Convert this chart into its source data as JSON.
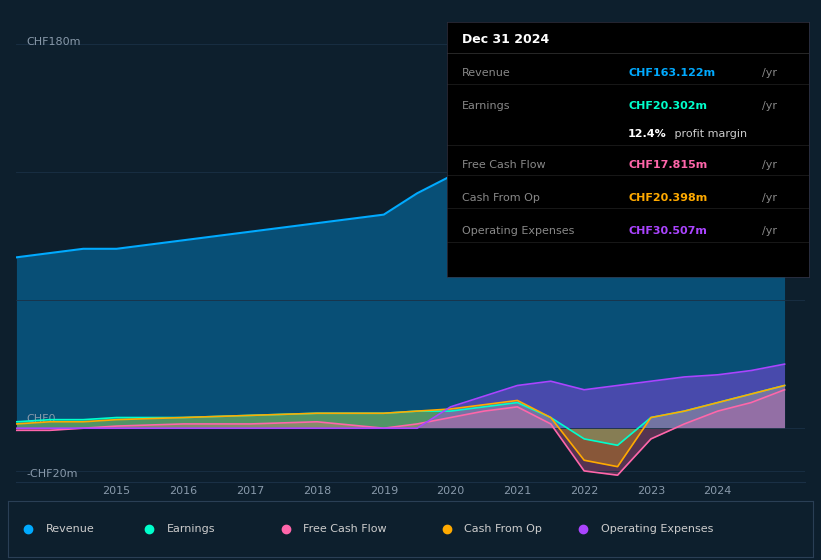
{
  "background_color": "#0d1f2d",
  "grid_color": "#1a3045",
  "tick_color": "#8899aa",
  "revenue_color": "#00aaff",
  "earnings_color": "#00ffcc",
  "fcf_color": "#ff66aa",
  "cashop_color": "#ffaa00",
  "opex_color": "#aa44ff",
  "x_tick_years": [
    2015,
    2016,
    2017,
    2018,
    2019,
    2020,
    2021,
    2022,
    2023,
    2024
  ],
  "legend_items": [
    {
      "label": "Revenue",
      "color": "#00aaff"
    },
    {
      "label": "Earnings",
      "color": "#00ffcc"
    },
    {
      "label": "Free Cash Flow",
      "color": "#ff66aa"
    },
    {
      "label": "Cash From Op",
      "color": "#ffaa00"
    },
    {
      "label": "Operating Expenses",
      "color": "#aa44ff"
    }
  ],
  "tooltip": {
    "title": "Dec 31 2024",
    "rows": [
      {
        "label": "Revenue",
        "value": "CHF163.122m",
        "unit": "/yr",
        "color": "#00aaff"
      },
      {
        "label": "Earnings",
        "value": "CHF20.302m",
        "unit": "/yr",
        "color": "#00ffcc"
      },
      {
        "label": "",
        "value": "12.4%",
        "unit": " profit margin",
        "color": "white"
      },
      {
        "label": "Free Cash Flow",
        "value": "CHF17.815m",
        "unit": "/yr",
        "color": "#ff66aa"
      },
      {
        "label": "Cash From Op",
        "value": "CHF20.398m",
        "unit": "/yr",
        "color": "#ffaa00"
      },
      {
        "label": "Operating Expenses",
        "value": "CHF30.507m",
        "unit": "/yr",
        "color": "#aa44ff"
      }
    ]
  }
}
